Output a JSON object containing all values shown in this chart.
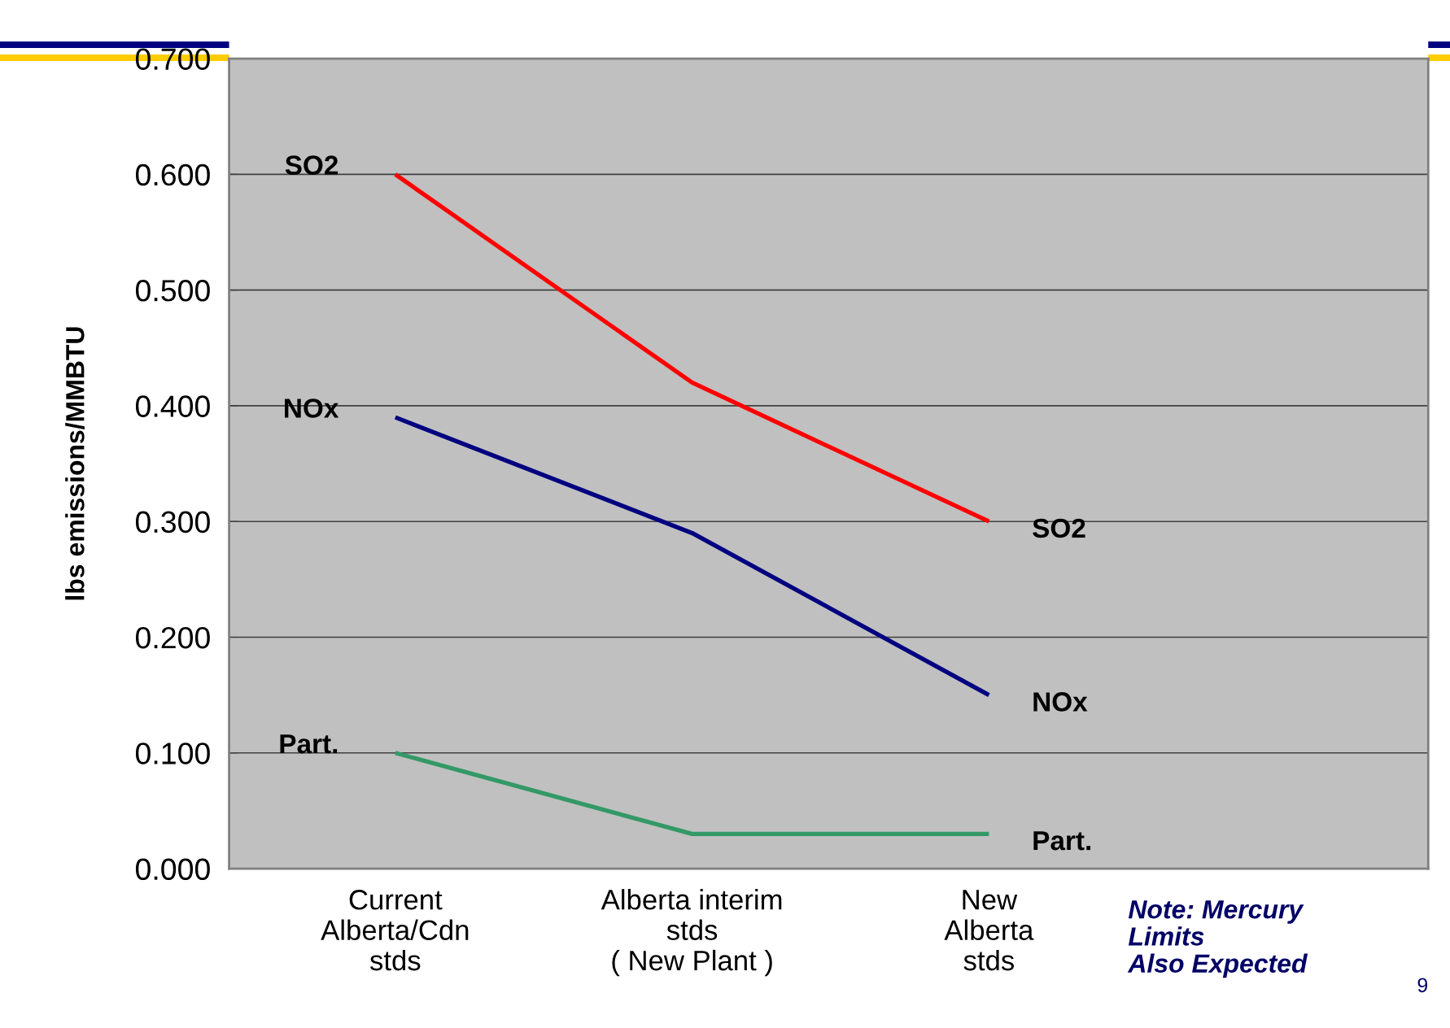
{
  "chart_data": {
    "type": "line",
    "ylabel": "lbs emissions/MMBTU",
    "categories": [
      "Current\nAlberta/Cdn\nstds",
      "Alberta interim\nstds\n( New Plant )",
      "New\nAlberta\nstds"
    ],
    "series": [
      {
        "name": "SO2",
        "color": "#ff0000",
        "values": [
          0.6,
          0.42,
          0.3
        ]
      },
      {
        "name": "NOx",
        "color": "#000080",
        "values": [
          0.39,
          0.29,
          0.15
        ]
      },
      {
        "name": "Part.",
        "color": "#339966",
        "values": [
          0.1,
          0.03,
          0.03
        ]
      }
    ],
    "ylim": [
      0,
      0.7
    ],
    "yticks": [
      {
        "value": 0,
        "label": "0.000"
      },
      {
        "value": 0.1,
        "label": "0.100"
      },
      {
        "value": 0.2,
        "label": "0.200"
      },
      {
        "value": 0.3,
        "label": "0.300"
      },
      {
        "value": 0.4,
        "label": "0.400"
      },
      {
        "value": 0.5,
        "label": "0.500"
      },
      {
        "value": 0.6,
        "label": "0.600"
      },
      {
        "value": 0.7,
        "label": "0.700"
      }
    ],
    "grid": "y",
    "annotations": [
      "Note: Mercury\nLimits\nAlso Expected",
      "9"
    ]
  }
}
